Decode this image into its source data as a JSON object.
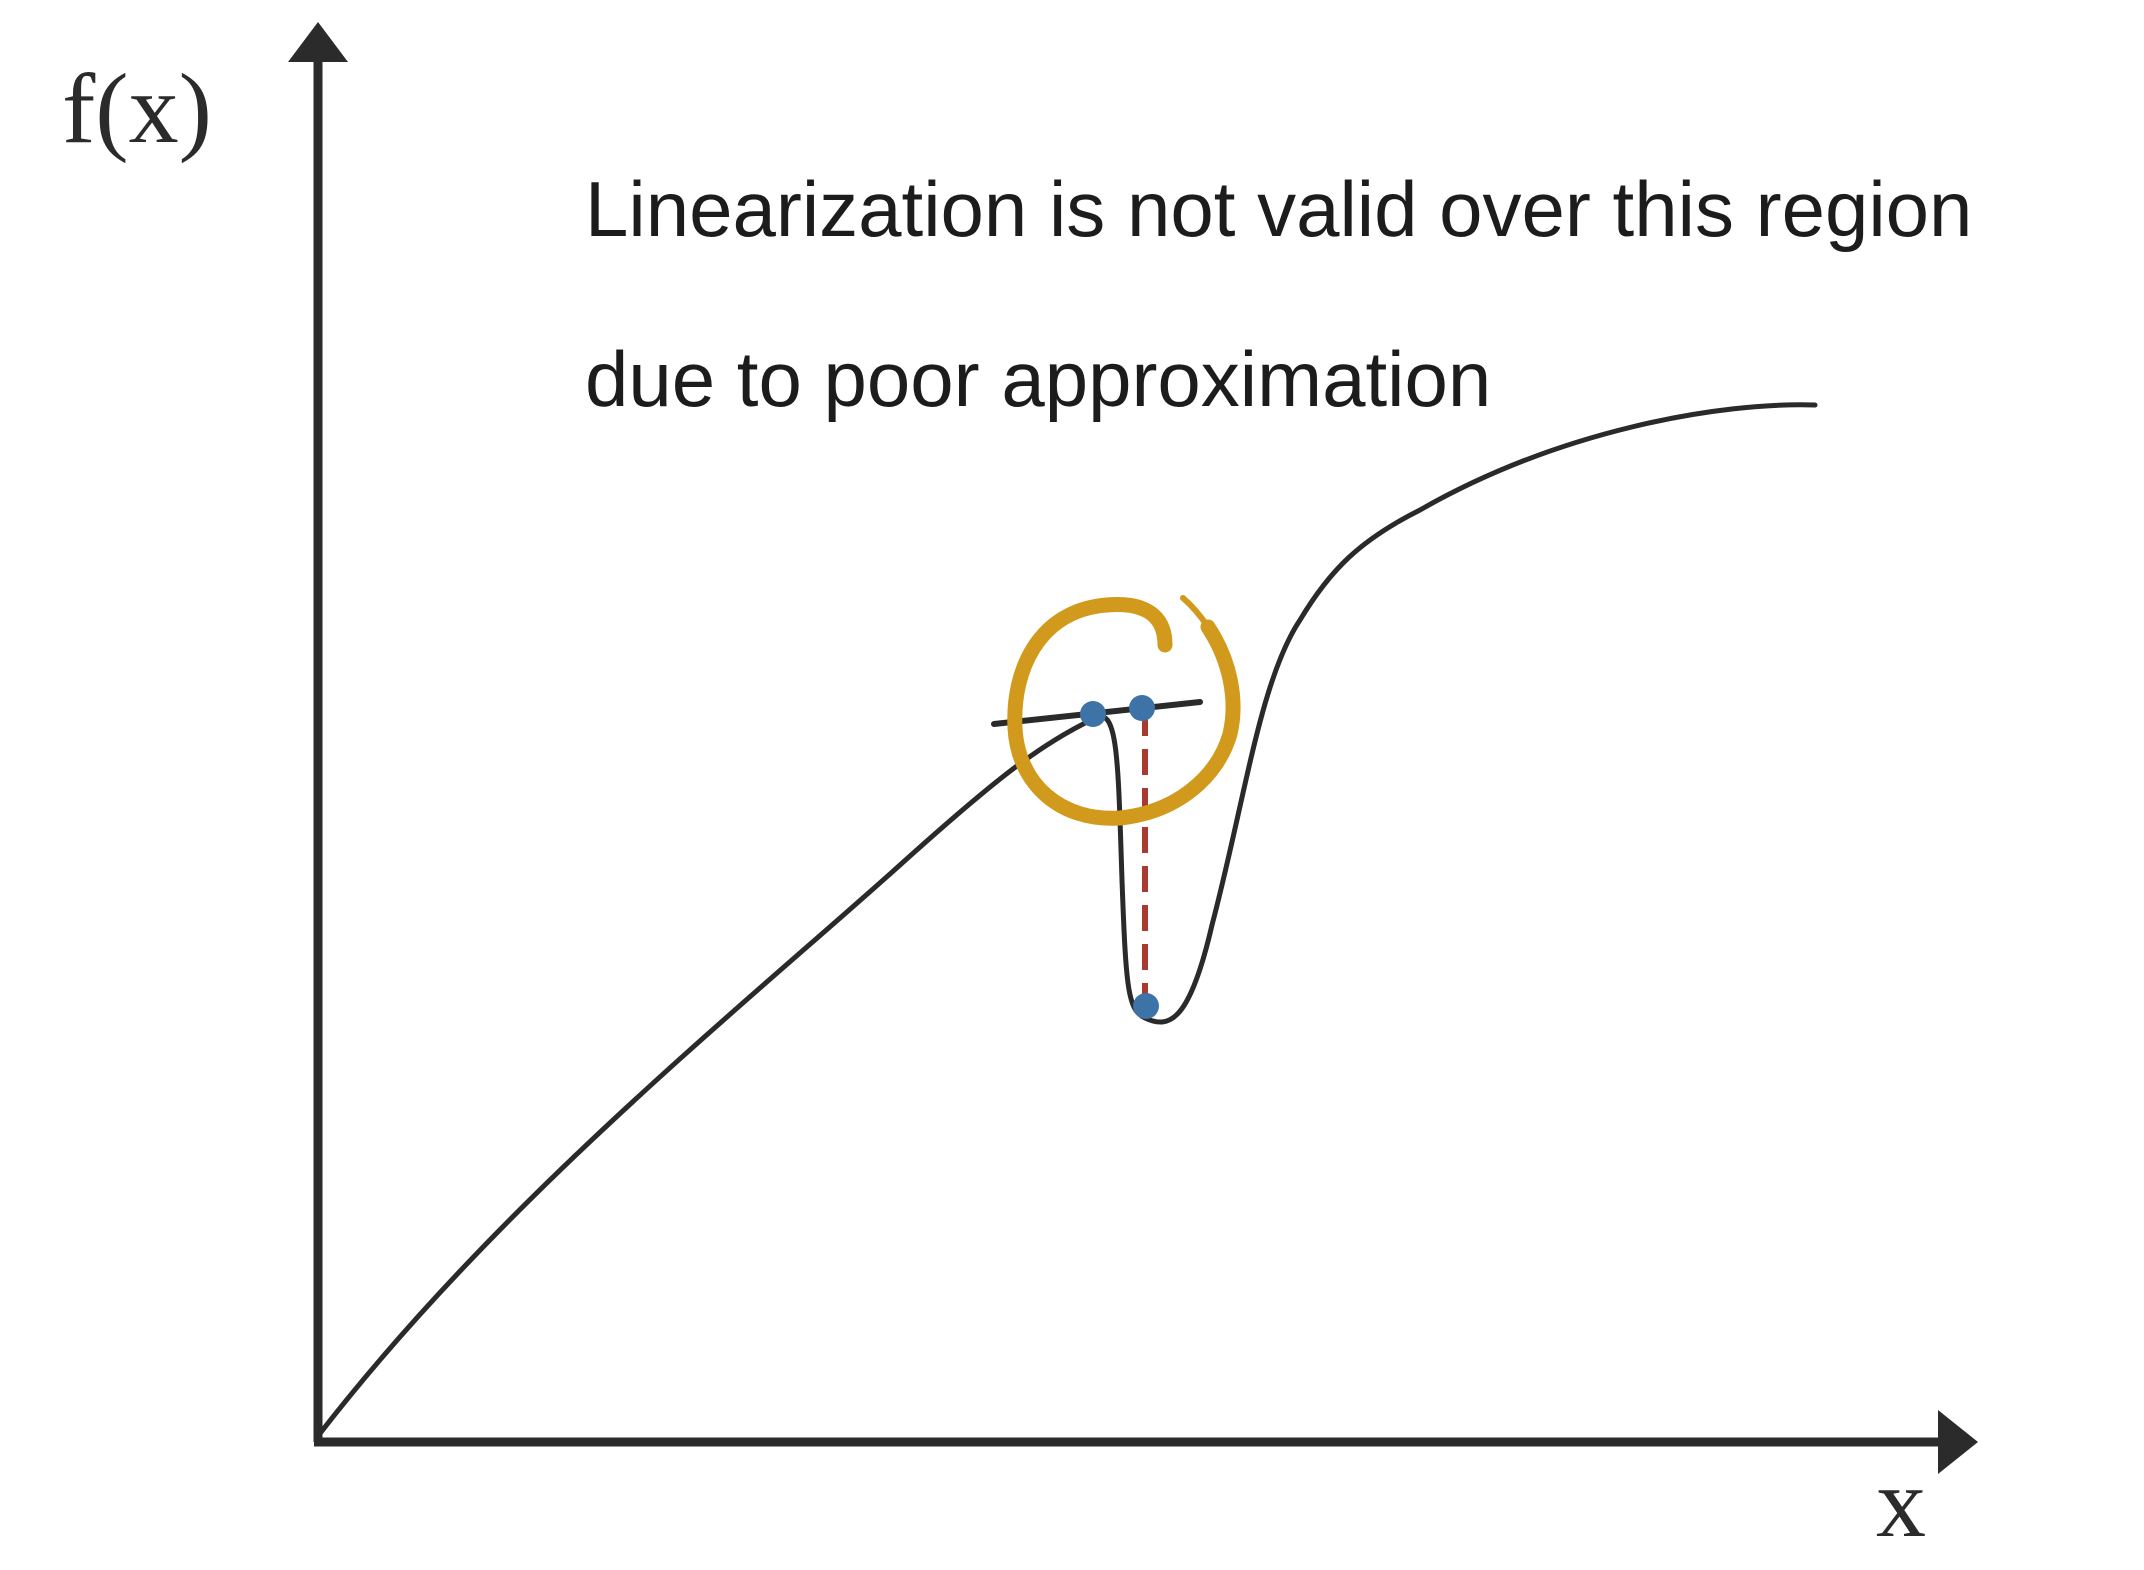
{
  "axes": {
    "y_label": "f(x)",
    "x_label": "x"
  },
  "annotation": {
    "line1": "Linearization is not valid over this region",
    "line2": "due to poor approximation"
  },
  "colors": {
    "axis": "#2b2b2b",
    "curve": "#2a2a2a",
    "tangent": "#2a2a2a",
    "highlight_circle": "#d19a1c",
    "error_dashes": "#a83a32",
    "points": "#3e73a8"
  },
  "icons": {
    "highlight": "hand-drawn-circle",
    "points": "dot"
  }
}
